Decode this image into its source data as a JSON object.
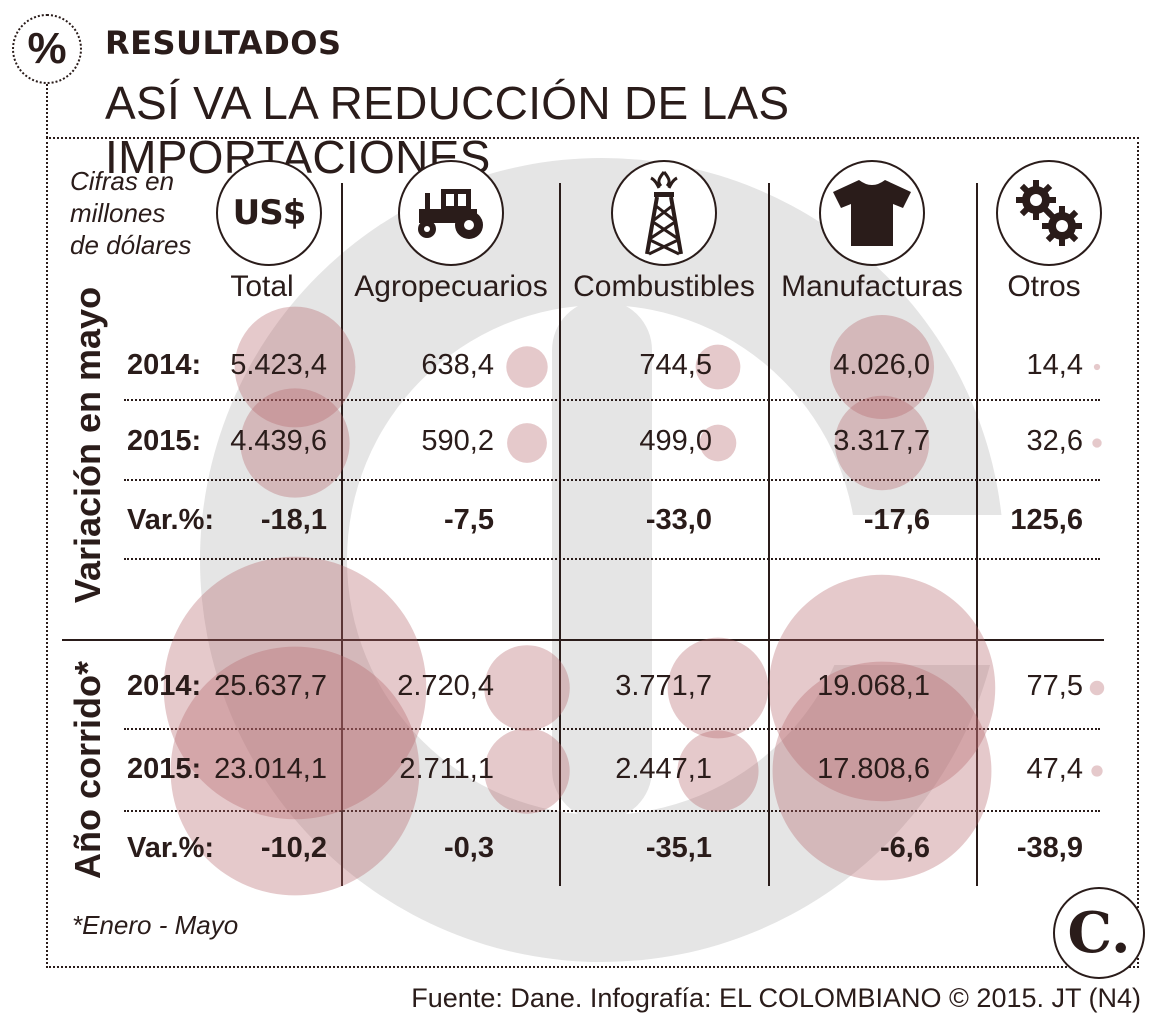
{
  "header": {
    "badge": "%",
    "kicker": "RESULTADOS",
    "title": "ASÍ VA LA REDUCCIÓN DE LAS IMPORTACIONES"
  },
  "units_note": [
    "Cifras en",
    "millones",
    "de dólares"
  ],
  "footnote": "*Enero - Mayo",
  "source": "Fuente: Dane. Infografía: EL COLOMBIANO © 2015. JT (N4)",
  "logo": "C.",
  "icons": [
    {
      "name": "usd-icon",
      "text": "US$"
    },
    {
      "name": "tractor-icon"
    },
    {
      "name": "oil-rig-icon"
    },
    {
      "name": "tshirt-icon"
    },
    {
      "name": "gears-icon"
    }
  ],
  "colors": {
    "bubble": "#b5636b",
    "watermark": "#e5e5e5",
    "ink": "#2a1c1a"
  },
  "chart_data": {
    "type": "table",
    "categories": [
      "Total",
      "Agropecuarios",
      "Combustibles",
      "Manufacturas",
      "Otros"
    ],
    "sections": [
      {
        "name": "Variación en mayo",
        "rows": [
          {
            "label": "2014:",
            "values": [
              5423.4,
              638.4,
              744.5,
              4026.0,
              14.4
            ],
            "display": [
              "5.423,4",
              "638,4",
              "744,5",
              "4.026,0",
              "14,4"
            ]
          },
          {
            "label": "2015:",
            "values": [
              4439.6,
              590.2,
              499.0,
              3317.7,
              32.6
            ],
            "display": [
              "4.439,6",
              "590,2",
              "499,0",
              "3.317,7",
              "32,6"
            ]
          },
          {
            "label": "Var.%:",
            "values": [
              -18.1,
              -7.5,
              -33.0,
              -17.6,
              125.6
            ],
            "display": [
              "-18,1",
              "-7,5",
              "-33,0",
              "-17,6",
              "125,6"
            ]
          }
        ]
      },
      {
        "name": "Año corrido*",
        "rows": [
          {
            "label": "2014:",
            "values": [
              25637.7,
              2720.4,
              3771.7,
              19068.1,
              77.5
            ],
            "display": [
              "25.637,7",
              "2.720,4",
              "3.771,7",
              "19.068,1",
              "77,5"
            ]
          },
          {
            "label": "2015:",
            "values": [
              23014.1,
              2711.1,
              2447.1,
              17808.6,
              47.4
            ],
            "display": [
              "23.014,1",
              "2.711,1",
              "2.447,1",
              "17.808,6",
              "47,4"
            ]
          },
          {
            "label": "Var.%:",
            "values": [
              -10.2,
              -0.3,
              -35.1,
              -6.6,
              -38.9
            ],
            "display": [
              "-10,2",
              "-0,3",
              "-35,1",
              "-6,6",
              "-38,9"
            ]
          }
        ]
      }
    ],
    "bubble_scale": "area proportional to value"
  }
}
